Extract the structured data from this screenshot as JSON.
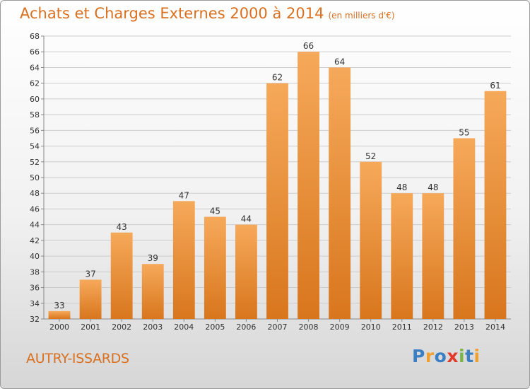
{
  "title": "Achats et Charges Externes 2000 à 2014",
  "subtitle": "(en milliers d'€)",
  "commune": "AUTRY-ISSARDS",
  "logo": {
    "text": "Proxiti",
    "letters": [
      {
        "ch": "P",
        "color": "#3a7fc4"
      },
      {
        "ch": "r",
        "color": "#f0a030"
      },
      {
        "ch": "o",
        "color": "#3a7fc4"
      },
      {
        "ch": "x",
        "color": "#e03a2a"
      },
      {
        "ch": "i",
        "color": "#7ab648"
      },
      {
        "ch": "t",
        "color": "#3a7fc4"
      },
      {
        "ch": "i",
        "color": "#f0a030"
      }
    ]
  },
  "colors": {
    "accent": "#d9701f",
    "bar_light": "#f6a95a",
    "bar_dark": "#d8761d",
    "grid": "#cccccc"
  },
  "chart_data": {
    "type": "bar",
    "title": "Achats et Charges Externes 2000 à 2014",
    "subtitle": "(en milliers d'€)",
    "xlabel": "",
    "ylabel": "",
    "categories": [
      "2000",
      "2001",
      "2002",
      "2003",
      "2004",
      "2005",
      "2006",
      "2007",
      "2008",
      "2009",
      "2010",
      "2011",
      "2012",
      "2013",
      "2014"
    ],
    "values": [
      33,
      37,
      43,
      39,
      47,
      45,
      44,
      62,
      66,
      64,
      52,
      48,
      48,
      55,
      61
    ],
    "ylim": [
      32,
      68
    ],
    "yticks": [
      32,
      34,
      36,
      38,
      40,
      42,
      44,
      46,
      48,
      50,
      52,
      54,
      56,
      58,
      60,
      62,
      64,
      66,
      68
    ],
    "grid": true,
    "data_labels": true
  }
}
